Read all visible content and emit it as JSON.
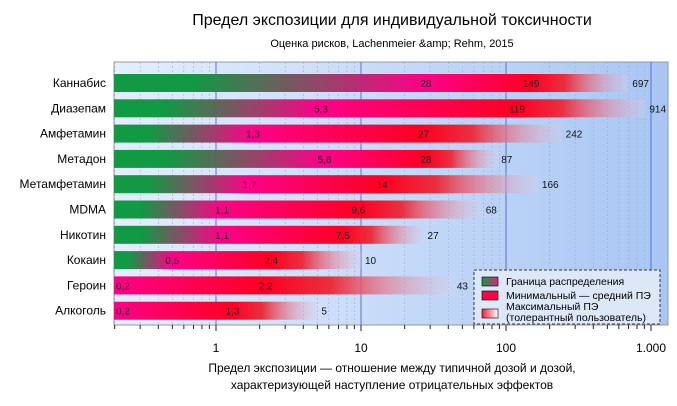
{
  "chart_data": {
    "type": "bar",
    "orientation": "horizontal",
    "title": "Предел экспозиции для индивидуальной токсичности",
    "subtitle": "Оценка рисков, Lachenmeier &amp; Rehm, 2015",
    "xlabel_line1": "Предел экспозиции — отношение между типичной дозой и дозой,",
    "xlabel_line2": "характеризующей наступление отрицательных эффектов",
    "xscale": "log",
    "xlim": [
      0.2,
      1300
    ],
    "xticks": [
      1,
      10,
      100,
      1000
    ],
    "xtick_labels": [
      "1",
      "10",
      "100",
      "1.000"
    ],
    "grid": true,
    "legend_placement": "bottom-right",
    "legend": [
      {
        "label": "Граница распределения",
        "color": "#2e8b57"
      },
      {
        "label": "Минимальный — средний ПЭ",
        "color": "#ff0040"
      },
      {
        "label": "Максимальный ПЭ",
        "label2": "(толерантный пользователь)",
        "color": "#ff6060"
      }
    ],
    "categories": [
      "Каннабис",
      "Диазепам",
      "Амфетамин",
      "Метадон",
      "Метамфетамин",
      "MDMA",
      "Никотин",
      "Кокаин",
      "Героин",
      "Алкоголь"
    ],
    "series": [
      {
        "key": "min",
        "values": [
          28,
          5.3,
          1.8,
          5.6,
          1.7,
          1.1,
          1.1,
          0.5,
          0.2,
          0.2
        ],
        "labels": [
          "28",
          "5,3",
          "1,8",
          "5,6",
          "1,7",
          "1,1",
          "1,1",
          "0,5",
          "0,2",
          "0,2"
        ]
      },
      {
        "key": "mean",
        "values": [
          149,
          119,
          27,
          28,
          14,
          9.6,
          7.5,
          2.4,
          2.2,
          1.3
        ],
        "labels": [
          "149",
          "119",
          "27",
          "28",
          "14",
          "9,6",
          "7,5",
          "2,4",
          "2,2",
          "1,3"
        ]
      },
      {
        "key": "max",
        "values": [
          697,
          914,
          242,
          87,
          166,
          68,
          27,
          10,
          43,
          5
        ],
        "labels": [
          "697",
          "914",
          "242",
          "87",
          "166",
          "68",
          "27",
          "10",
          "43",
          "5"
        ]
      }
    ],
    "colors": {
      "green": "#119944",
      "pink": "#ff0088",
      "red": "#ff0022",
      "bg_left": "#dfeafc",
      "bg_right": "#a9c8f5",
      "major_grid": "#5a6fd8"
    }
  }
}
